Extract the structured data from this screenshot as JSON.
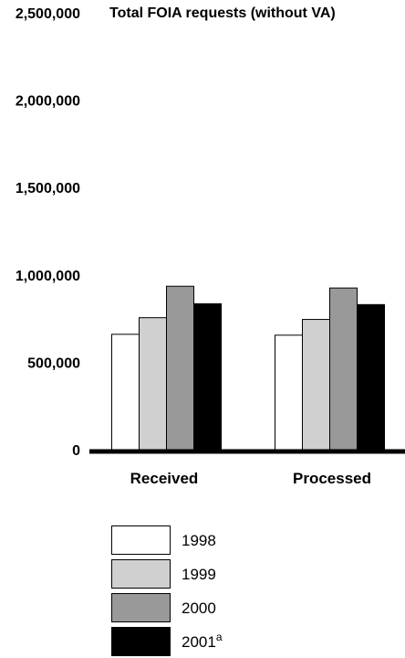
{
  "chart_data": {
    "type": "bar",
    "title": "Total FOIA requests (without VA)",
    "xlabel": "",
    "ylabel": "",
    "categories": [
      "Received",
      "Processed"
    ],
    "ylim": [
      0,
      2500000
    ],
    "yticks": [
      0,
      500000,
      1000000,
      1500000,
      2000000,
      2500000
    ],
    "ytick_labels": [
      "0",
      "500,000",
      "1,000,000",
      "1,500,000",
      "2,000,000",
      "2,500,000"
    ],
    "grid": false,
    "legend_position": "bottom",
    "series": [
      {
        "name": "1998",
        "values": [
          660000,
          655000
        ],
        "color": "#ffffff"
      },
      {
        "name": "1999",
        "values": [
          755000,
          745000
        ],
        "color": "#d0d0d0"
      },
      {
        "name": "2000",
        "values": [
          935000,
          925000
        ],
        "color": "#999999"
      },
      {
        "name": "2001",
        "name_superscript": "a",
        "values": [
          835000,
          830000
        ],
        "color": "#000000"
      }
    ]
  }
}
